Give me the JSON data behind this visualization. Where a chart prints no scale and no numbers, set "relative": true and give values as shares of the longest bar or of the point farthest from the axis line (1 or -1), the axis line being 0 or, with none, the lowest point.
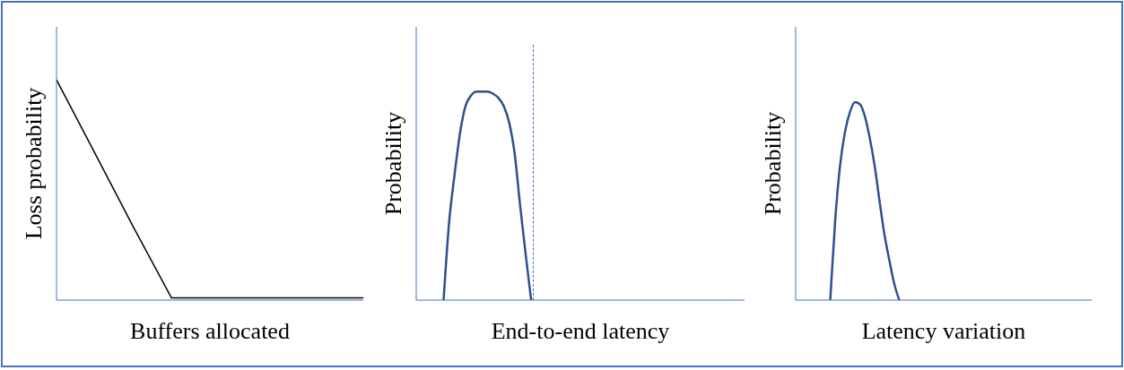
{
  "chart_data": [
    {
      "type": "line",
      "relative": true,
      "xlabel": "Buffers allocated",
      "ylabel": "Loss probability",
      "marker": "none",
      "categories": [
        null,
        null,
        null,
        null,
        null,
        null,
        null,
        null,
        null
      ],
      "series": [
        {
          "color": "#000000",
          "values": [
            1,
            0.667,
            0.333,
            0.01,
            0.01,
            0.01,
            0.01,
            0.01,
            0.01
          ]
        }
      ]
    },
    {
      "type": "line",
      "relative": true,
      "xlabel": "End-to-end latency",
      "ylabel": "Probability",
      "marker": "none",
      "categories": [
        null,
        null,
        null,
        null,
        null,
        null,
        null,
        null,
        null,
        null,
        null,
        null,
        null,
        null,
        null,
        null,
        null,
        null,
        null,
        null,
        null,
        null,
        null,
        null,
        null,
        null,
        null,
        null,
        null,
        null,
        null,
        null,
        null,
        null,
        null,
        null,
        null,
        null,
        null,
        null,
        null,
        null,
        null,
        null,
        null,
        null,
        null,
        null,
        null,
        null,
        null,
        null,
        null,
        null,
        null,
        null,
        null,
        null,
        null,
        null,
        null
      ],
      "series": [
        {
          "color": "#2f4f8f",
          "values": [
            null,
            null,
            null,
            null,
            null,
            0,
            0.37,
            0.6,
            0.8,
            0.93,
            0.98,
            1,
            1,
            1,
            0.99,
            0.97,
            0.93,
            0.85,
            0.7,
            0.45,
            0.22,
            0,
            null,
            null,
            null,
            null,
            null,
            null,
            null,
            null,
            null,
            null,
            null,
            null,
            null,
            null,
            null,
            null,
            null,
            null,
            null,
            null,
            null,
            null,
            null,
            null,
            null,
            null,
            null,
            null,
            null,
            null,
            null,
            null,
            null,
            null,
            null,
            null,
            null,
            null,
            null
          ]
        }
      ]
    },
    {
      "type": "line",
      "relative": true,
      "xlabel": "Latency variation",
      "ylabel": "Probability",
      "marker": "none",
      "categories": [
        null,
        null,
        null,
        null,
        null,
        null,
        null,
        null,
        null,
        null,
        null,
        null,
        null,
        null,
        null,
        null,
        null,
        null,
        null,
        null,
        null,
        null,
        null,
        null,
        null,
        null,
        null,
        null,
        null,
        null,
        null,
        null,
        null,
        null,
        null,
        null,
        null,
        null,
        null,
        null,
        null,
        null,
        null,
        null,
        null,
        null,
        null,
        null,
        null,
        null,
        null,
        null,
        null,
        null,
        null,
        null,
        null,
        null,
        null,
        null,
        null
      ],
      "series": [
        {
          "color": "#2f4f8f",
          "values": [
            null,
            null,
            null,
            null,
            null,
            null,
            null,
            0,
            0.4,
            0.68,
            0.85,
            0.95,
            1,
            0.99,
            0.93,
            0.82,
            0.68,
            0.5,
            0.33,
            0.2,
            0.08,
            0,
            null,
            null,
            null,
            null,
            null,
            null,
            null,
            null,
            null,
            null,
            null,
            null,
            null,
            null,
            null,
            null,
            null,
            null,
            null,
            null,
            null,
            null,
            null,
            null,
            null,
            null,
            null,
            null,
            null,
            null,
            null,
            null,
            null,
            null,
            null,
            null,
            null,
            null,
            null
          ]
        }
      ]
    }
  ]
}
